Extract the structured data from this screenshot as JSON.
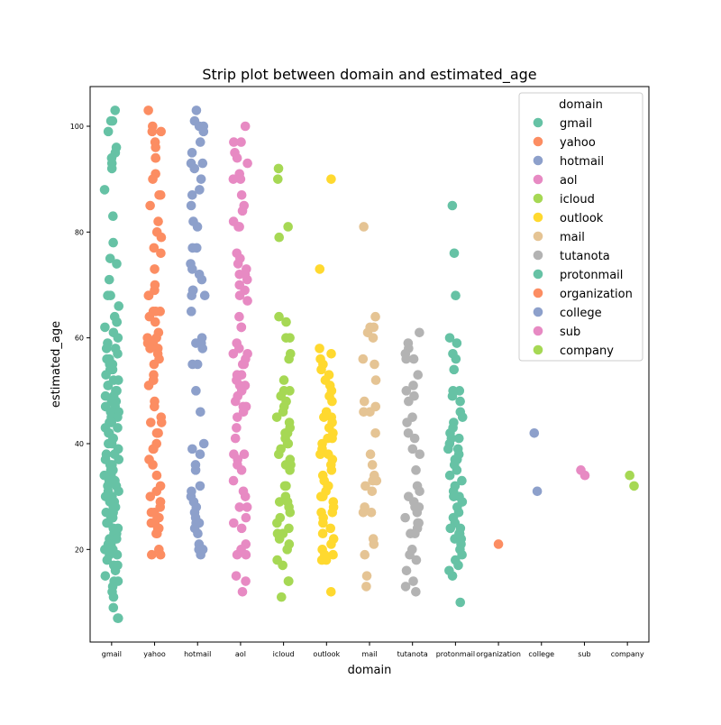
{
  "chart_data": {
    "type": "scatter",
    "subtype": "strip",
    "title": "Strip plot between domain and estimated_age",
    "xlabel": "domain",
    "ylabel": "estimated_age",
    "categories": [
      "gmail",
      "yahoo",
      "hotmail",
      "aol",
      "icloud",
      "outlook",
      "mail",
      "tutanota",
      "protonmail",
      "organization",
      "college",
      "sub",
      "company"
    ],
    "yticks": [
      20,
      40,
      60,
      80,
      100
    ],
    "ylim": [
      2.5,
      107.5
    ],
    "legend_title": "domain",
    "legend_position": "top-right",
    "grid": false,
    "colors": [
      "#66c2a5",
      "#fc8d62",
      "#8da0cb",
      "#e78ac3",
      "#a6d854",
      "#ffd92f",
      "#e5c494",
      "#b3b3b3",
      "#66c2a5",
      "#fc8d62",
      "#8da0cb",
      "#e78ac3",
      "#a6d854"
    ],
    "series": [
      {
        "name": "gmail",
        "values": [
          103,
          101,
          101,
          99,
          96,
          95,
          94,
          93,
          92,
          88,
          83,
          78,
          75,
          74,
          71,
          68,
          68,
          66,
          64,
          63,
          63,
          62,
          61,
          60,
          59,
          58,
          58,
          57,
          56,
          56,
          55,
          55,
          54,
          54,
          53,
          52,
          52,
          51,
          51,
          50,
          50,
          49,
          49,
          48,
          48,
          47,
          47,
          46,
          46,
          45,
          45,
          44,
          44,
          43,
          43,
          42,
          42,
          41,
          41,
          40,
          40,
          39,
          39,
          38,
          38,
          37,
          37,
          36,
          36,
          35,
          35,
          34,
          34,
          33,
          33,
          32,
          32,
          31,
          31,
          30,
          30,
          29,
          29,
          28,
          28,
          27,
          27,
          26,
          26,
          25,
          25,
          24,
          24,
          23,
          23,
          22,
          22,
          21,
          21,
          20,
          20,
          19,
          19,
          18,
          17,
          17,
          16,
          15,
          14,
          14,
          13,
          12,
          11,
          9,
          7,
          7
        ]
      },
      {
        "name": "yahoo",
        "values": [
          103,
          100,
          99,
          99,
          97,
          96,
          94,
          94,
          91,
          90,
          87,
          87,
          85,
          82,
          80,
          79,
          77,
          76,
          73,
          70,
          69,
          68,
          68,
          65,
          65,
          65,
          64,
          63,
          61,
          60,
          60,
          59,
          59,
          58,
          58,
          57,
          56,
          55,
          53,
          52,
          52,
          51,
          48,
          47,
          45,
          44,
          44,
          42,
          42,
          40,
          39,
          39,
          37,
          36,
          34,
          32,
          31,
          30,
          29,
          29,
          28,
          27,
          27,
          26,
          26,
          25,
          25,
          24,
          24,
          23,
          23,
          20,
          19,
          19
        ]
      },
      {
        "name": "hotmail",
        "values": [
          103,
          101,
          100,
          100,
          99,
          97,
          95,
          93,
          93,
          92,
          90,
          88,
          87,
          85,
          82,
          81,
          77,
          77,
          74,
          73,
          72,
          71,
          69,
          69,
          68,
          68,
          65,
          60,
          59,
          59,
          58,
          55,
          55,
          50,
          46,
          40,
          39,
          38,
          36,
          35,
          32,
          31,
          30,
          29,
          28,
          27,
          26,
          25,
          25,
          24,
          23,
          21,
          20,
          20,
          19
        ]
      },
      {
        "name": "aol",
        "values": [
          100,
          97,
          97,
          95,
          94,
          93,
          91,
          90,
          90,
          87,
          85,
          84,
          82,
          81,
          81,
          76,
          75,
          74,
          73,
          72,
          72,
          71,
          70,
          69,
          68,
          67,
          64,
          62,
          62,
          59,
          58,
          57,
          57,
          56,
          55,
          55,
          53,
          53,
          52,
          51,
          51,
          50,
          49,
          48,
          47,
          47,
          46,
          45,
          43,
          41,
          38,
          38,
          37,
          36,
          35,
          33,
          31,
          30,
          28,
          28,
          26,
          25,
          24,
          21,
          20,
          19,
          19,
          15,
          14,
          12
        ]
      },
      {
        "name": "icloud",
        "values": [
          92,
          90,
          81,
          79,
          64,
          63,
          60,
          60,
          57,
          56,
          52,
          50,
          50,
          49,
          48,
          47,
          46,
          45,
          44,
          43,
          42,
          42,
          41,
          40,
          40,
          39,
          38,
          37,
          36,
          36,
          35,
          32,
          32,
          30,
          29,
          29,
          28,
          27,
          26,
          25,
          24,
          23,
          23,
          22,
          21,
          20,
          18,
          17,
          14,
          14,
          11
        ]
      },
      {
        "name": "outlook",
        "values": [
          90,
          73,
          58,
          57,
          56,
          55,
          54,
          53,
          52,
          51,
          50,
          49,
          48,
          46,
          45,
          45,
          44,
          43,
          42,
          41,
          41,
          40,
          39,
          38,
          38,
          37,
          36,
          35,
          34,
          33,
          32,
          32,
          31,
          30,
          30,
          29,
          28,
          27,
          27,
          26,
          25,
          24,
          23,
          22,
          21,
          20,
          19,
          19,
          18,
          18,
          12
        ]
      },
      {
        "name": "mail",
        "values": [
          81,
          64,
          62,
          62,
          61,
          60,
          56,
          55,
          52,
          48,
          47,
          46,
          46,
          42,
          38,
          36,
          34,
          33,
          33,
          32,
          31,
          28,
          27,
          27,
          22,
          21,
          19,
          15,
          13
        ]
      },
      {
        "name": "tutanota",
        "values": [
          61,
          59,
          58,
          57,
          56,
          56,
          53,
          51,
          50,
          49,
          48,
          45,
          44,
          42,
          41,
          39,
          38,
          35,
          32,
          31,
          30,
          29,
          28,
          28,
          27,
          26,
          25,
          25,
          24,
          23,
          23,
          20,
          19,
          18,
          16,
          14,
          13,
          12
        ]
      },
      {
        "name": "protonmail",
        "values": [
          85,
          76,
          68,
          60,
          59,
          57,
          56,
          54,
          50,
          50,
          49,
          48,
          46,
          45,
          44,
          43,
          42,
          41,
          41,
          40,
          39,
          39,
          38,
          37,
          37,
          36,
          35,
          34,
          33,
          32,
          31,
          30,
          30,
          29,
          28,
          27,
          26,
          25,
          24,
          24,
          23,
          23,
          22,
          22,
          21,
          20,
          19,
          18,
          17,
          16,
          15,
          10
        ]
      },
      {
        "name": "organization",
        "values": [
          21
        ]
      },
      {
        "name": "college",
        "values": [
          42,
          31
        ]
      },
      {
        "name": "sub",
        "values": [
          35,
          34
        ]
      },
      {
        "name": "company",
        "values": [
          34,
          32
        ]
      }
    ]
  }
}
